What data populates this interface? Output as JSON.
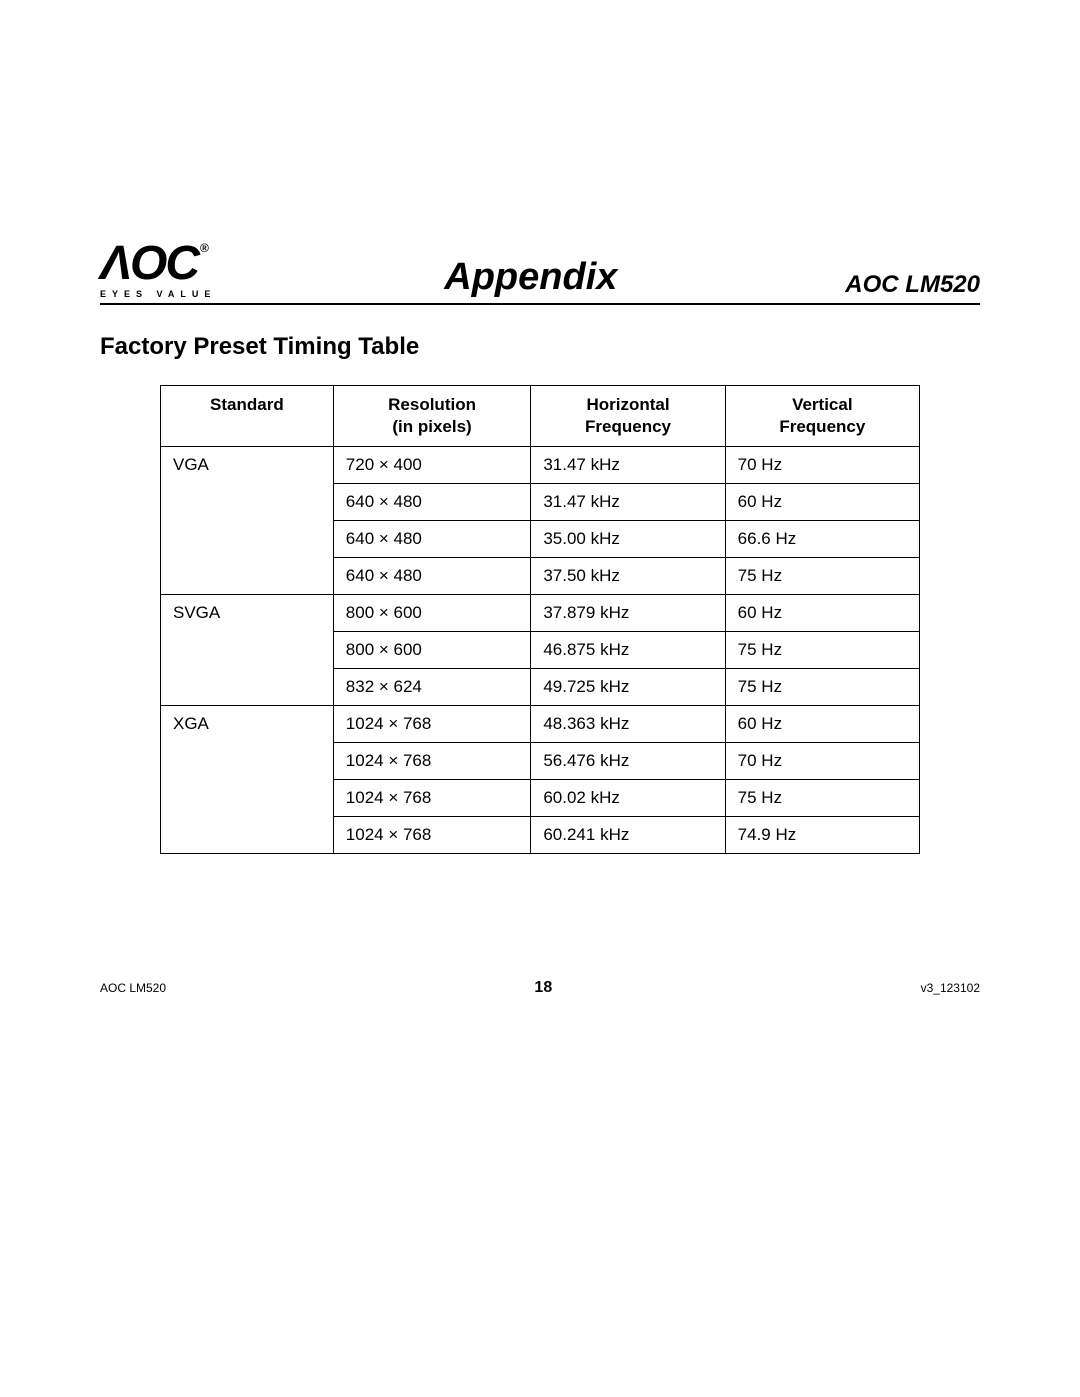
{
  "logo": {
    "brand": "AOC",
    "registered": "®",
    "tagline": "EYES VALUE"
  },
  "header": {
    "title": "Appendix",
    "model": "AOC LM520"
  },
  "section_title": "Factory Preset Timing Table",
  "table": {
    "columns": [
      "Standard",
      "Resolution (in pixels)",
      "Horizontal Frequency",
      "Vertical Frequency"
    ],
    "column_headers": {
      "c1": "Standard",
      "c2_l1": "Resolution",
      "c2_l2": "(in pixels)",
      "c3_l1": "Horizontal",
      "c3_l2": "Frequency",
      "c4_l1": "Vertical",
      "c4_l2": "Frequency"
    },
    "groups": [
      {
        "standard": "VGA",
        "rows": [
          {
            "res": "720 × 400",
            "h": "31.47 kHz",
            "v": "70 Hz"
          },
          {
            "res": "640 × 480",
            "h": "31.47 kHz",
            "v": "60 Hz"
          },
          {
            "res": "640 × 480",
            "h": "35.00 kHz",
            "v": "66.6 Hz"
          },
          {
            "res": "640 × 480",
            "h": "37.50 kHz",
            "v": "75 Hz"
          }
        ]
      },
      {
        "standard": "SVGA",
        "rows": [
          {
            "res": "800 × 600",
            "h": "37.879 kHz",
            "v": "60 Hz"
          },
          {
            "res": "800 × 600",
            "h": "46.875 kHz",
            "v": "75 Hz"
          },
          {
            "res": "832 × 624",
            "h": "49.725 kHz",
            "v": "75 Hz"
          }
        ]
      },
      {
        "standard": "XGA",
        "rows": [
          {
            "res": "1024 × 768",
            "h": "48.363 kHz",
            "v": "60 Hz"
          },
          {
            "res": "1024 × 768",
            "h": "56.476 kHz",
            "v": "70 Hz"
          },
          {
            "res": "1024 × 768",
            "h": "60.02 kHz",
            "v": "75 Hz"
          },
          {
            "res": "1024 × 768",
            "h": "60.241 kHz",
            "v": "74.9 Hz"
          }
        ]
      }
    ]
  },
  "footer": {
    "left": "AOC LM520",
    "page": "18",
    "right": "v3_123102"
  },
  "style": {
    "background": "#ffffff",
    "text_color": "#000000",
    "border_color": "#000000",
    "title_fontsize": 38,
    "section_fontsize": 24,
    "body_fontsize": 17
  }
}
